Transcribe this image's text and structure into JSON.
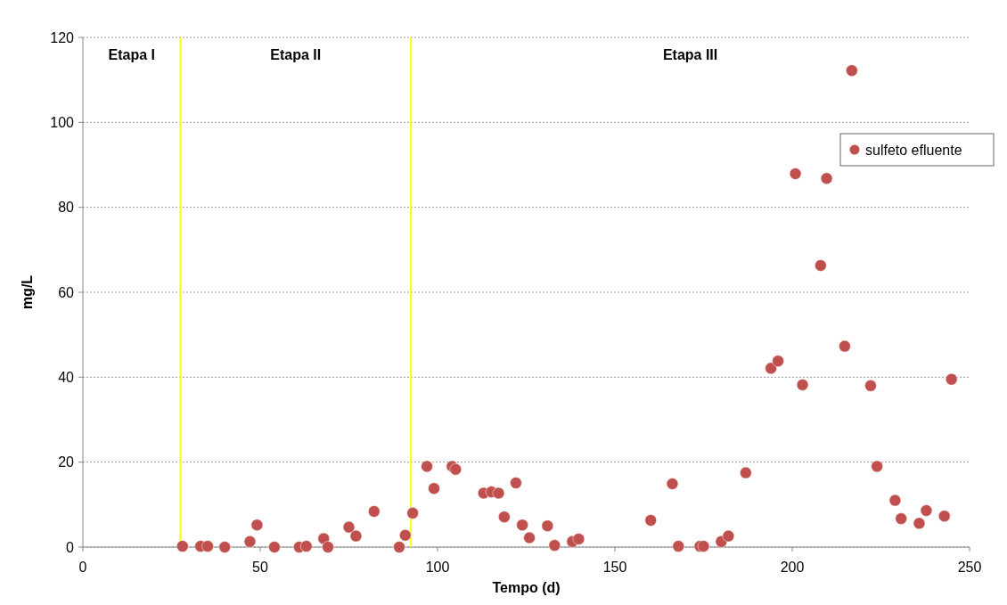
{
  "chart_data": {
    "type": "scatter",
    "xlabel": "Tempo (d)",
    "ylabel": "mg/L",
    "xlim": [
      0,
      250
    ],
    "xticks": [
      0,
      50,
      100,
      150,
      200,
      250
    ],
    "ylim": [
      0,
      120
    ],
    "yticks": [
      0,
      20,
      40,
      60,
      80,
      100,
      120
    ],
    "grid": "y",
    "legend": "right",
    "marker": "circle",
    "series": [
      {
        "name": "sulfeto efluente",
        "color": "#c0504d",
        "x": [
          28.1,
          33.2,
          35.2,
          40,
          47.1,
          49.1,
          54,
          61,
          63,
          67.9,
          69.1,
          75,
          77,
          82.1,
          89.2,
          90.9,
          93,
          97,
          99,
          104.1,
          105.1,
          113,
          115.2,
          117.2,
          118.8,
          122.1,
          123.9,
          125.9,
          131,
          133,
          138,
          139.8,
          160.1,
          166.2,
          167.9,
          174,
          175,
          180,
          182,
          186.9,
          194,
          196,
          200.9,
          202.9,
          208,
          209.7,
          214.8,
          216.8,
          222.1,
          223.9,
          229,
          230.7,
          235.8,
          237.8,
          242.9,
          244.9
        ],
        "values": [
          0.2,
          0.2,
          0.2,
          0,
          1.3,
          5.2,
          0,
          0,
          0.2,
          2,
          0,
          4.7,
          2.6,
          8.4,
          0,
          2.8,
          8,
          19,
          13.8,
          19,
          18.3,
          12.7,
          13,
          12.7,
          7.1,
          15.1,
          5.2,
          2.2,
          5,
          0.4,
          1.3,
          1.9,
          6.3,
          14.9,
          0.2,
          0.2,
          0.2,
          1.3,
          2.6,
          17.5,
          42.1,
          43.8,
          87.9,
          38.2,
          66.3,
          86.8,
          47.3,
          112.2,
          38,
          19,
          11,
          6.7,
          5.6,
          8.6,
          7.3,
          39.5
        ]
      }
    ],
    "ref_lines": [
      {
        "axis": "x",
        "value": 27.5,
        "color": "#ffff00"
      },
      {
        "axis": "x",
        "value": 92.5,
        "color": "#ffff00"
      }
    ],
    "annotations": [
      "Etapa I",
      "Etapa II",
      "Etapa III"
    ]
  }
}
